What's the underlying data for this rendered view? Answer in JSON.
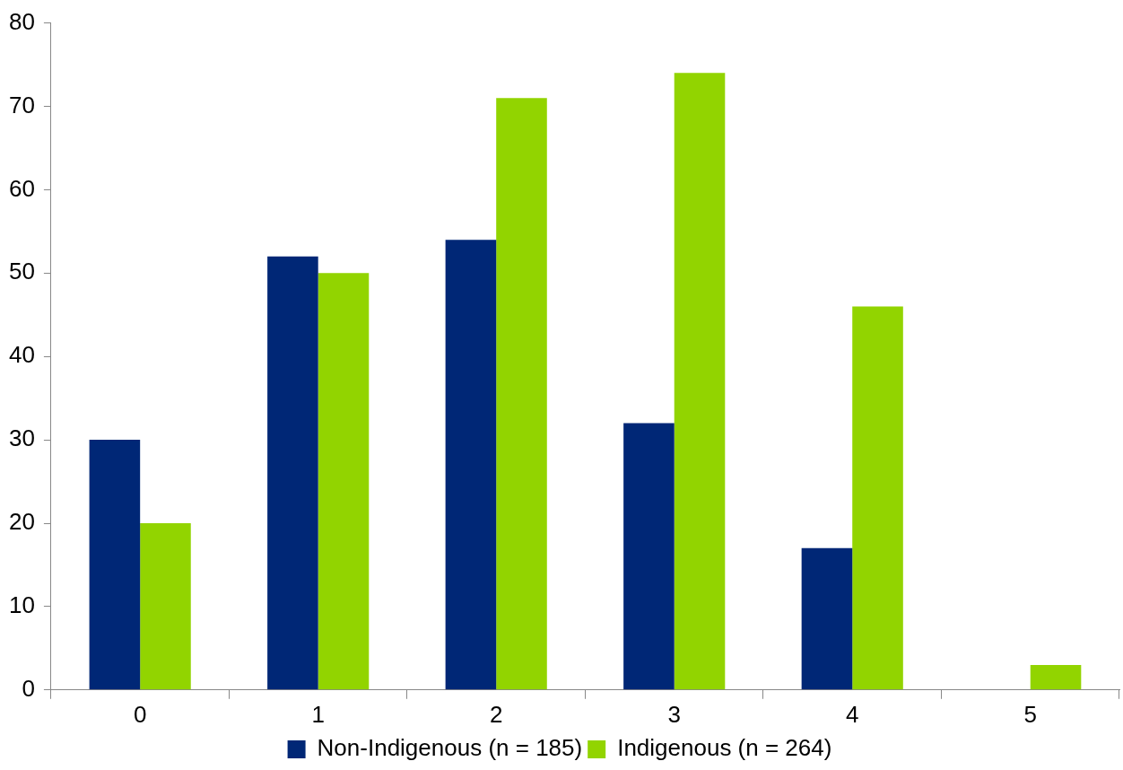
{
  "chart_data": {
    "type": "bar",
    "categories": [
      "0",
      "1",
      "2",
      "3",
      "4",
      "5"
    ],
    "series": [
      {
        "name": "Non-Indigenous (n = 185)",
        "color": "#002776",
        "values": [
          30,
          52,
          54,
          32,
          17,
          0
        ]
      },
      {
        "name": "Indigenous (n = 264)",
        "color": "#92d400",
        "values": [
          20,
          50,
          71,
          74,
          46,
          3
        ]
      }
    ],
    "ylim": [
      0,
      80
    ],
    "yticks": [
      0,
      10,
      20,
      30,
      40,
      50,
      60,
      70,
      80
    ],
    "grid": false,
    "legend": "bottom"
  }
}
